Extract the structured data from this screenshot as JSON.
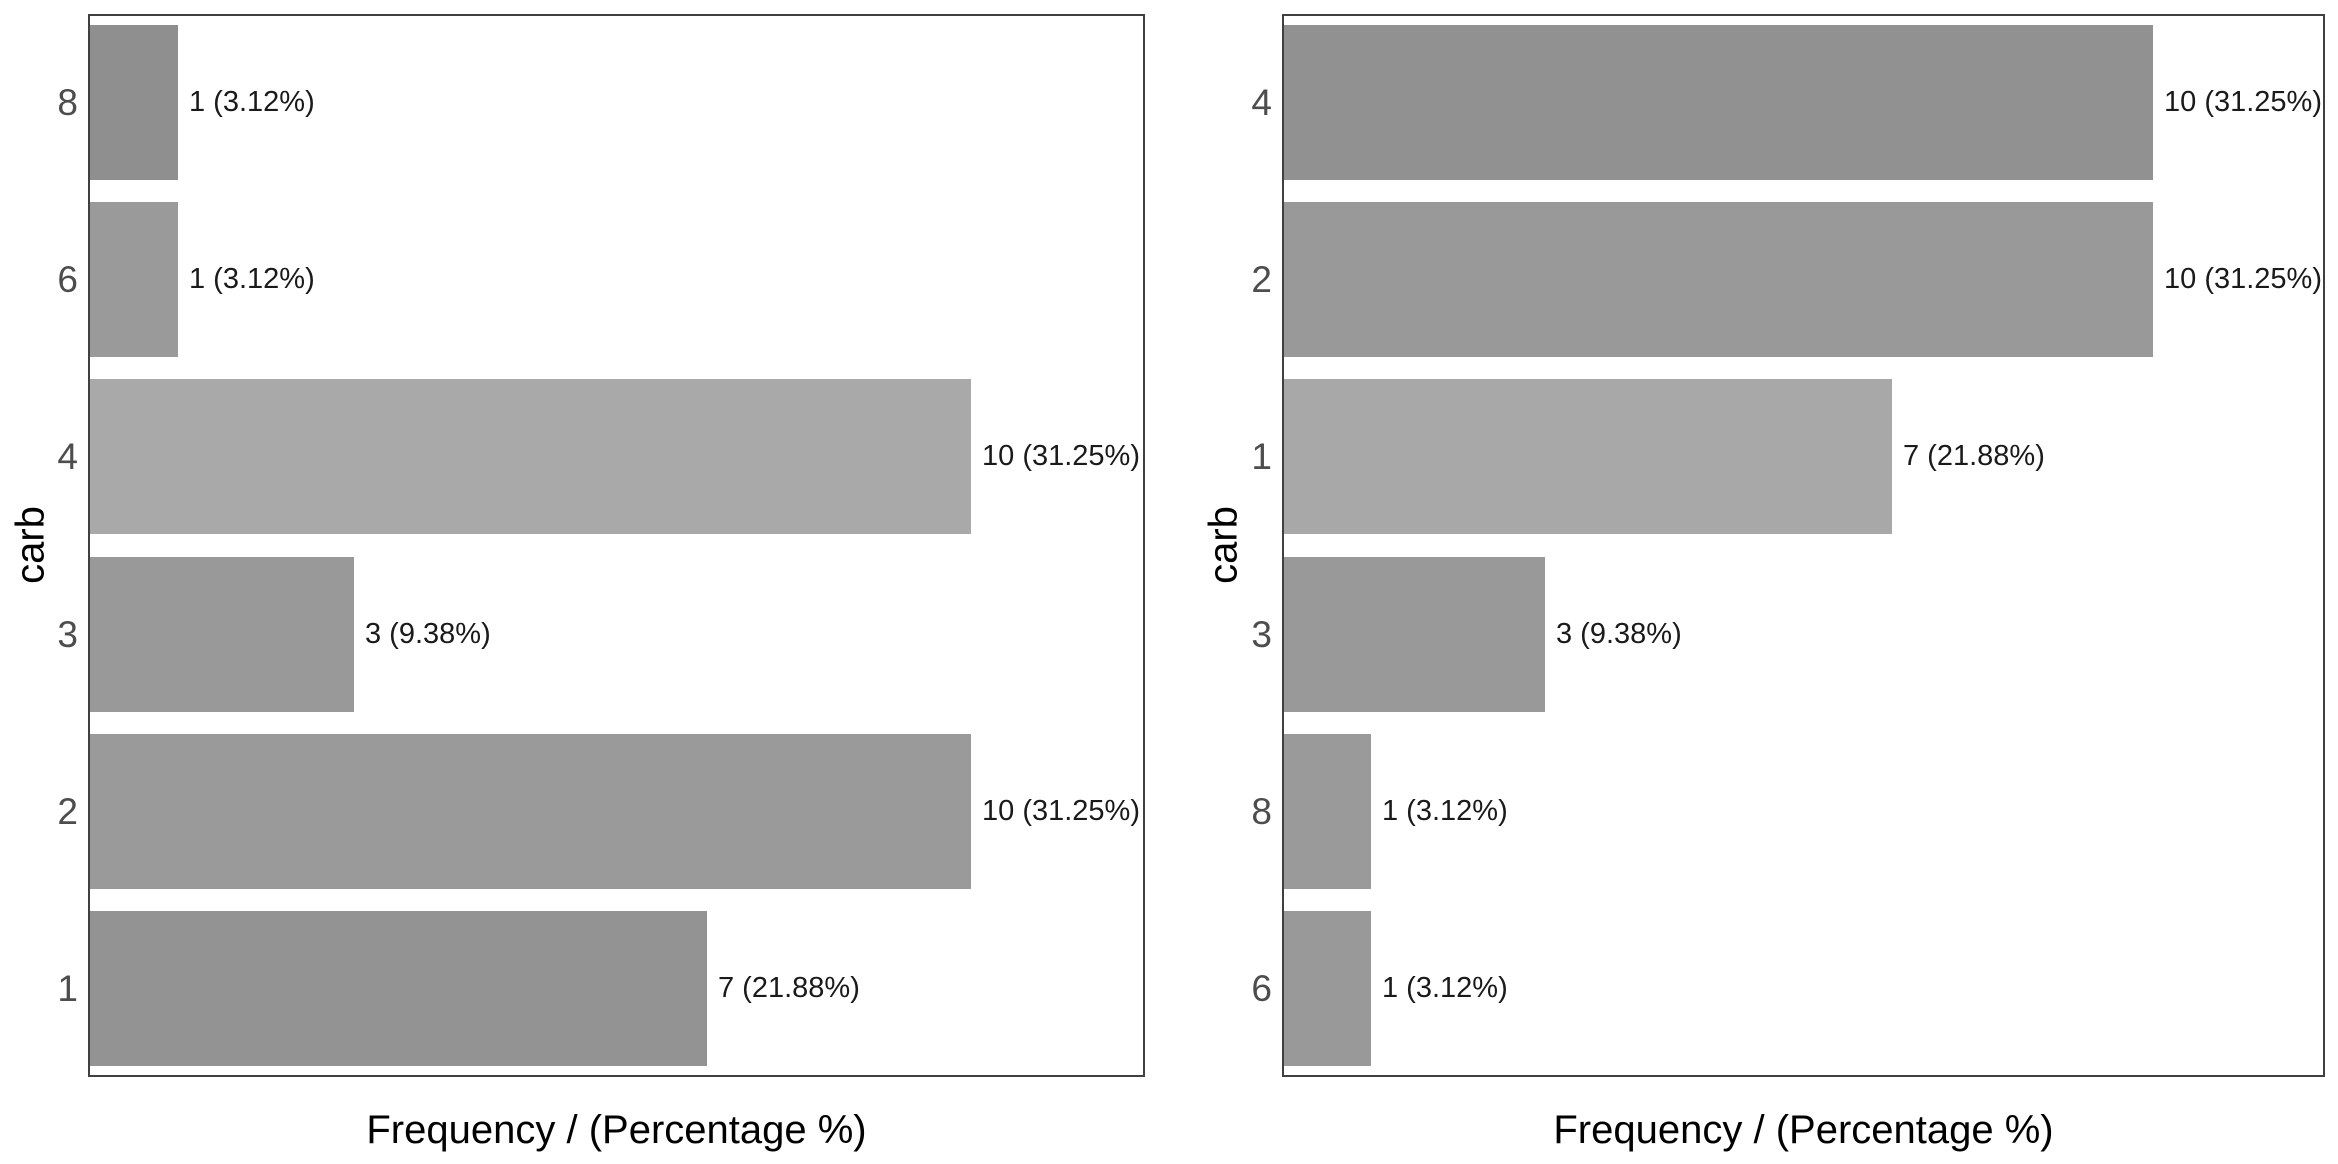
{
  "figure": {
    "background": "#ffffff",
    "panel_border_color": "#404040",
    "tick_label_color": "#4d4d4d",
    "bar_label_color": "#1a1a1a",
    "title_color": "#000000"
  },
  "chart_data": [
    {
      "type": "bar",
      "orientation": "horizontal",
      "order": "by category descending, top to bottom",
      "title": "",
      "xlabel": "Frequency / (Percentage %)",
      "ylabel": "carb",
      "categories": [
        "8",
        "6",
        "4",
        "3",
        "2",
        "1"
      ],
      "values": [
        1,
        1,
        10,
        3,
        10,
        7
      ],
      "percentages": [
        3.12,
        3.12,
        31.25,
        9.38,
        31.25,
        21.88
      ],
      "bar_labels": [
        "1 (3.12%)",
        "1 (3.12%)",
        "10 (31.25%)",
        "3 (9.38%)",
        "10 (31.25%)",
        "7 (21.88%)"
      ],
      "bar_colors": [
        "#8f8f8f",
        "#9a9a9a",
        "#a9a9a9",
        "#999999",
        "#9a9a9a",
        "#939393"
      ],
      "xlim": [
        0,
        12
      ],
      "grid": false,
      "legend": "none",
      "x_tick_labels": [],
      "y_tick_marks": false
    },
    {
      "type": "bar",
      "orientation": "horizontal",
      "order": "by frequency descending, top to bottom",
      "title": "",
      "xlabel": "Frequency / (Percentage %)",
      "ylabel": "carb",
      "categories": [
        "4",
        "2",
        "1",
        "3",
        "8",
        "6"
      ],
      "values": [
        10,
        10,
        7,
        3,
        1,
        1
      ],
      "percentages": [
        31.25,
        31.25,
        21.88,
        9.38,
        3.12,
        3.12
      ],
      "bar_labels": [
        "10 (31.25%)",
        "10 (31.25%)",
        "7 (21.88%)",
        "3 (9.38%)",
        "1 (3.12%)",
        "1 (3.12%)"
      ],
      "bar_colors": [
        "#919191",
        "#999999",
        "#a8a8a8",
        "#999999",
        "#9a9a9a",
        "#999999"
      ],
      "xlim": [
        0,
        12
      ],
      "grid": false,
      "legend": "none",
      "x_tick_labels": [],
      "y_tick_marks": false
    }
  ]
}
